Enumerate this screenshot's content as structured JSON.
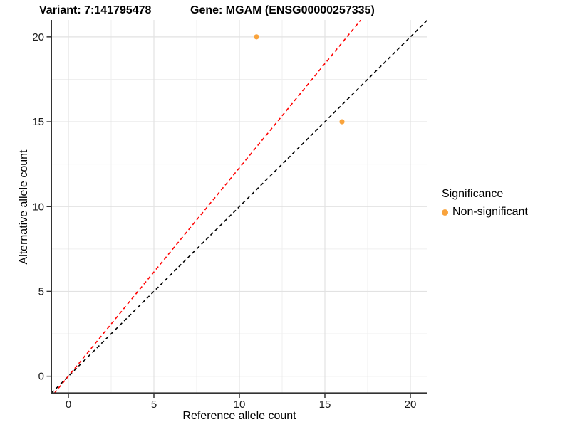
{
  "titles": {
    "variant": "Variant: 7:141795478",
    "gene": "Gene: MGAM (ENSG00000257335)"
  },
  "chart_data": {
    "type": "scatter",
    "title": "Variant: 7:141795478   Gene: MGAM (ENSG00000257335)",
    "xlabel": "Reference allele count",
    "ylabel": "Alternative allele count",
    "xlim": [
      -1,
      21
    ],
    "ylim": [
      -1,
      21
    ],
    "x_ticks": [
      0,
      5,
      10,
      15,
      20
    ],
    "y_ticks": [
      0,
      5,
      10,
      15,
      20
    ],
    "x_minor": [
      2.5,
      7.5,
      12.5,
      17.5
    ],
    "y_minor": [
      2.5,
      7.5,
      12.5,
      17.5
    ],
    "grid": true,
    "series": [
      {
        "name": "Non-significant",
        "color": "#F9A33C",
        "points": [
          {
            "x": 11,
            "y": 20
          },
          {
            "x": 16,
            "y": 15
          }
        ]
      }
    ],
    "lines": [
      {
        "name": "identity-line",
        "color": "#000000",
        "dashed": true,
        "x1": -1,
        "y1": -1,
        "x2": 21,
        "y2": 21
      },
      {
        "name": "ratio-line",
        "color": "#FF0000",
        "dashed": true,
        "x1": -0.82,
        "y1": -1,
        "x2": 17.1,
        "y2": 21
      }
    ],
    "legend": {
      "title": "Significance",
      "position": "right",
      "items": [
        {
          "label": "Non-significant",
          "color": "#F9A33C"
        }
      ]
    }
  },
  "style": {
    "major_grid_color": "#E2E2E2",
    "minor_grid_color": "#EFEFEF",
    "axis_line_color": "#333333",
    "tick_label_color": "#1a1a1a",
    "point_color": "#F9A33C"
  }
}
